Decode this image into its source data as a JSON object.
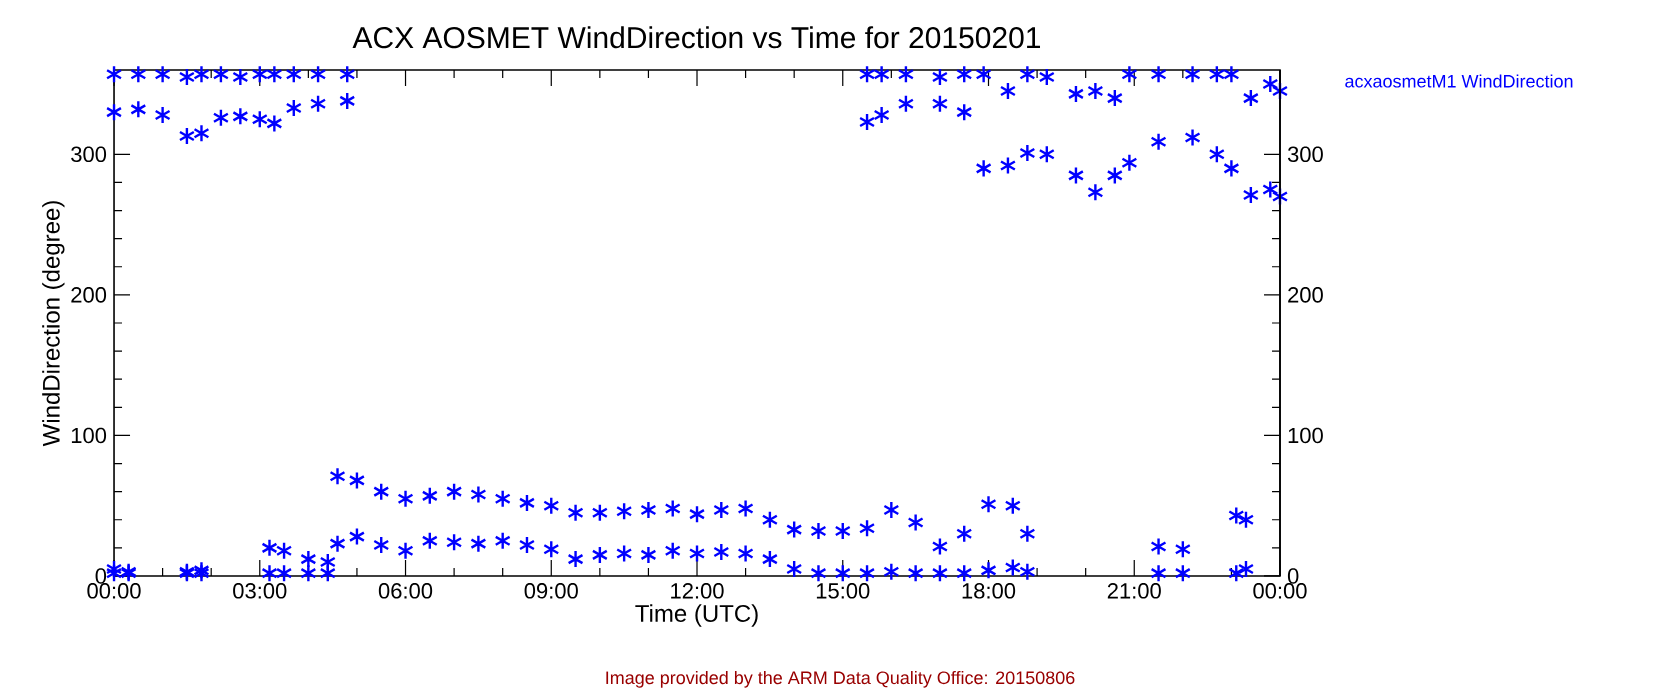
{
  "chart_data": {
    "type": "scatter",
    "title": "ACX AOSMET WindDirection vs Time for 20150201",
    "xlabel": "Time (UTC)",
    "ylabel": "WindDirection (degree)",
    "xlim": [
      0,
      24
    ],
    "xticks": [
      {
        "value": 0,
        "label": "00:00"
      },
      {
        "value": 3,
        "label": "03:00"
      },
      {
        "value": 6,
        "label": "06:00"
      },
      {
        "value": 9,
        "label": "09:00"
      },
      {
        "value": 12,
        "label": "12:00"
      },
      {
        "value": 15,
        "label": "15:00"
      },
      {
        "value": 18,
        "label": "18:00"
      },
      {
        "value": 21,
        "label": "21:00"
      },
      {
        "value": 24,
        "label": "00:00"
      }
    ],
    "ylim": [
      0,
      360
    ],
    "yticks": [
      0,
      100,
      200,
      300
    ],
    "y2lim": [
      0,
      360
    ],
    "y2ticks": [
      0,
      100,
      200,
      300
    ],
    "marker": "cross",
    "legend": "top right",
    "annotations": [
      "Image provided by the ARM Data Quality Office: 20150806"
    ],
    "series": [
      {
        "name": "acxaosmetM1 WindDirection",
        "color": "#0000ff",
        "x": [
          0.0,
          0.0,
          0.5,
          0.5,
          1.0,
          1.0,
          1.5,
          1.5,
          1.8,
          1.8,
          2.2,
          2.2,
          2.6,
          2.6,
          3.0,
          3.0,
          3.3,
          3.3,
          3.7,
          3.7,
          4.2,
          4.2,
          4.8,
          4.8,
          0.0,
          0.0,
          0.3,
          0.3,
          1.5,
          1.5,
          1.8,
          1.8,
          3.2,
          3.2,
          3.5,
          3.5,
          4.0,
          4.0,
          4.4,
          4.4,
          4.6,
          4.6,
          5.0,
          5.0,
          5.5,
          5.5,
          6.0,
          6.0,
          6.5,
          6.5,
          7.0,
          7.0,
          7.5,
          7.5,
          8.0,
          8.0,
          8.5,
          8.5,
          9.0,
          9.0,
          9.5,
          9.5,
          10.0,
          10.0,
          10.5,
          10.5,
          11.0,
          11.0,
          11.5,
          11.5,
          12.0,
          12.0,
          12.5,
          12.5,
          13.0,
          13.0,
          13.5,
          13.5,
          14.0,
          14.0,
          14.5,
          14.5,
          15.0,
          15.0,
          15.5,
          15.5,
          16.0,
          16.0,
          16.5,
          16.5,
          17.0,
          17.0,
          17.5,
          17.5,
          18.0,
          18.0,
          18.5,
          18.5,
          18.8,
          18.8,
          21.5,
          21.5,
          22.0,
          22.0,
          23.1,
          23.1,
          23.3,
          23.3,
          15.5,
          15.5,
          15.8,
          15.8,
          16.3,
          16.3,
          17.0,
          17.0,
          17.5,
          17.5,
          17.9,
          17.9,
          18.4,
          18.4,
          18.8,
          18.8,
          19.2,
          19.2,
          19.8,
          19.8,
          20.2,
          20.2,
          20.6,
          20.6,
          20.9,
          20.9,
          21.5,
          21.5,
          22.2,
          22.2,
          22.7,
          22.7,
          23.0,
          23.0,
          23.4,
          23.4,
          23.8,
          23.8,
          24.0,
          24.0
        ],
        "values": [
          357,
          330,
          357,
          332,
          357,
          328,
          355,
          313,
          357,
          315,
          357,
          326,
          355,
          327,
          357,
          325,
          357,
          322,
          357,
          333,
          357,
          336,
          357,
          338,
          5,
          2,
          3,
          2,
          3,
          2,
          4,
          2,
          20,
          2,
          18,
          2,
          12,
          2,
          10,
          2,
          71,
          23,
          68,
          28,
          60,
          22,
          55,
          18,
          57,
          25,
          60,
          24,
          58,
          23,
          55,
          25,
          52,
          22,
          50,
          19,
          45,
          12,
          45,
          15,
          46,
          16,
          47,
          15,
          48,
          18,
          44,
          16,
          47,
          17,
          48,
          16,
          40,
          12,
          33,
          5,
          32,
          2,
          32,
          2,
          34,
          2,
          47,
          3,
          38,
          2,
          21,
          2,
          30,
          2,
          51,
          4,
          50,
          6,
          30,
          3,
          21,
          2,
          19,
          2,
          43,
          2,
          40,
          5,
          357,
          323,
          357,
          328,
          357,
          336,
          355,
          336,
          357,
          330,
          357,
          290,
          345,
          292,
          357,
          301,
          355,
          300,
          343,
          285,
          345,
          273,
          340,
          285,
          357,
          294,
          357,
          309,
          357,
          312,
          357,
          300,
          357,
          290,
          340,
          271,
          350,
          275,
          345,
          270
        ]
      }
    ]
  }
}
